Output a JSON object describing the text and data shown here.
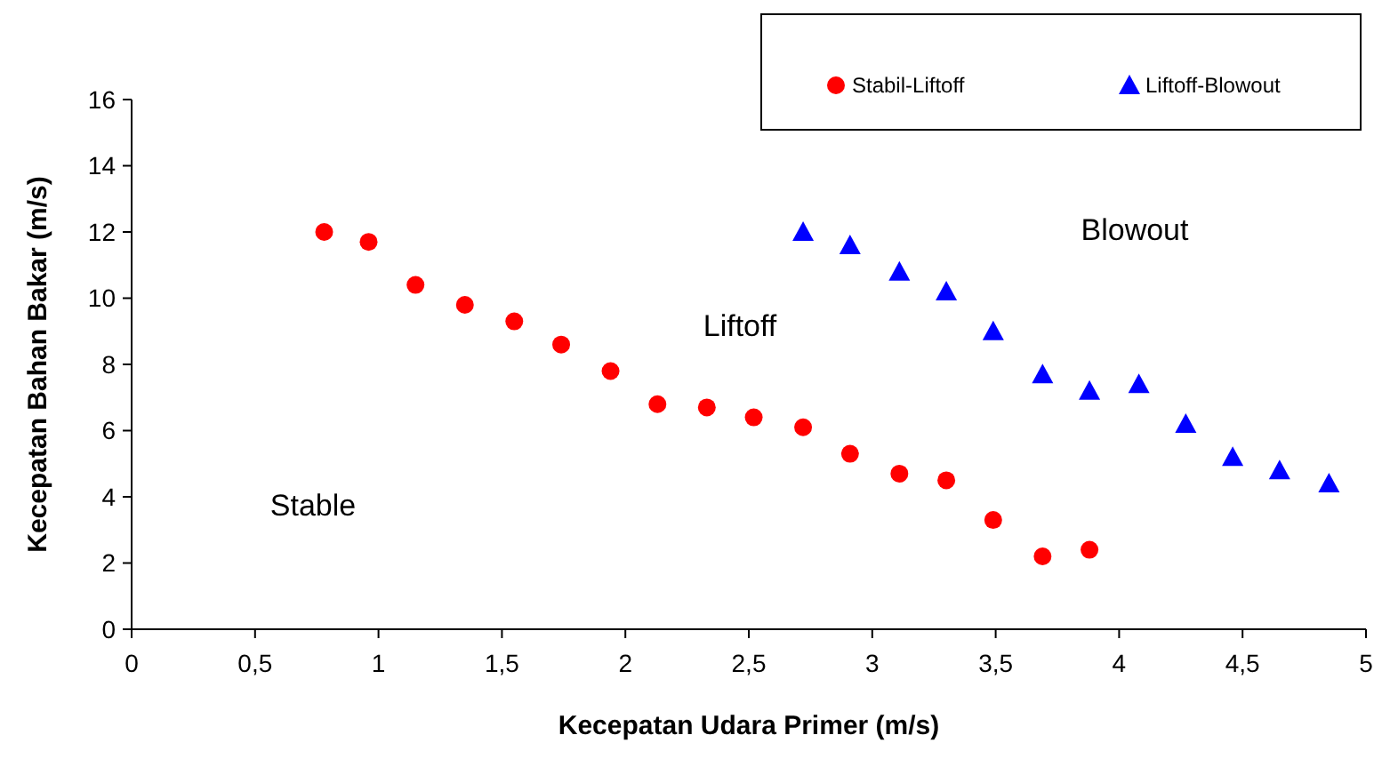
{
  "chart_data": {
    "type": "scatter",
    "xlabel": "Kecepatan Udara Primer (m/s)",
    "ylabel": "Kecepatan Bahan Bakar (m/s)",
    "xlim": [
      0,
      5
    ],
    "xticks": [
      0,
      {
        "value": 0.5,
        "label": "0,5"
      },
      1,
      {
        "value": 1.5,
        "label": "1,5"
      },
      2,
      {
        "value": 2.5,
        "label": "2,5"
      },
      3,
      {
        "value": 3.5,
        "label": "3,5"
      },
      4,
      {
        "value": 4.5,
        "label": "4,5"
      },
      5
    ],
    "ylim": [
      0,
      16
    ],
    "yticks": [
      0,
      2,
      4,
      6,
      8,
      10,
      12,
      14,
      16
    ],
    "grid": false,
    "legend": "top right",
    "series": [
      {
        "name": "Stabil-Liftoff",
        "color": "#ff0000",
        "marker": "circle",
        "x": [
          0.78,
          0.96,
          1.15,
          1.35,
          1.55,
          1.74,
          1.94,
          2.13,
          2.33,
          2.52,
          2.72,
          2.91,
          3.11,
          3.3,
          3.49,
          3.69,
          3.88
        ],
        "values": [
          12.0,
          11.7,
          10.4,
          9.8,
          9.3,
          8.6,
          7.8,
          6.8,
          6.7,
          6.4,
          6.1,
          5.3,
          4.7,
          4.5,
          3.3,
          2.2,
          2.4
        ]
      },
      {
        "name": "Liftoff-Blowout",
        "color": "#0000ff",
        "marker": "triangle",
        "x": [
          2.72,
          2.91,
          3.11,
          3.3,
          3.49,
          3.69,
          3.88,
          4.08,
          4.27,
          4.46,
          4.65,
          4.85
        ],
        "values": [
          12.0,
          11.6,
          10.8,
          10.2,
          9.0,
          7.7,
          7.2,
          7.4,
          6.2,
          5.2,
          4.8,
          4.4
        ]
      }
    ],
    "annotations": [
      "Stable",
      "Liftoff",
      "Blowout"
    ]
  }
}
